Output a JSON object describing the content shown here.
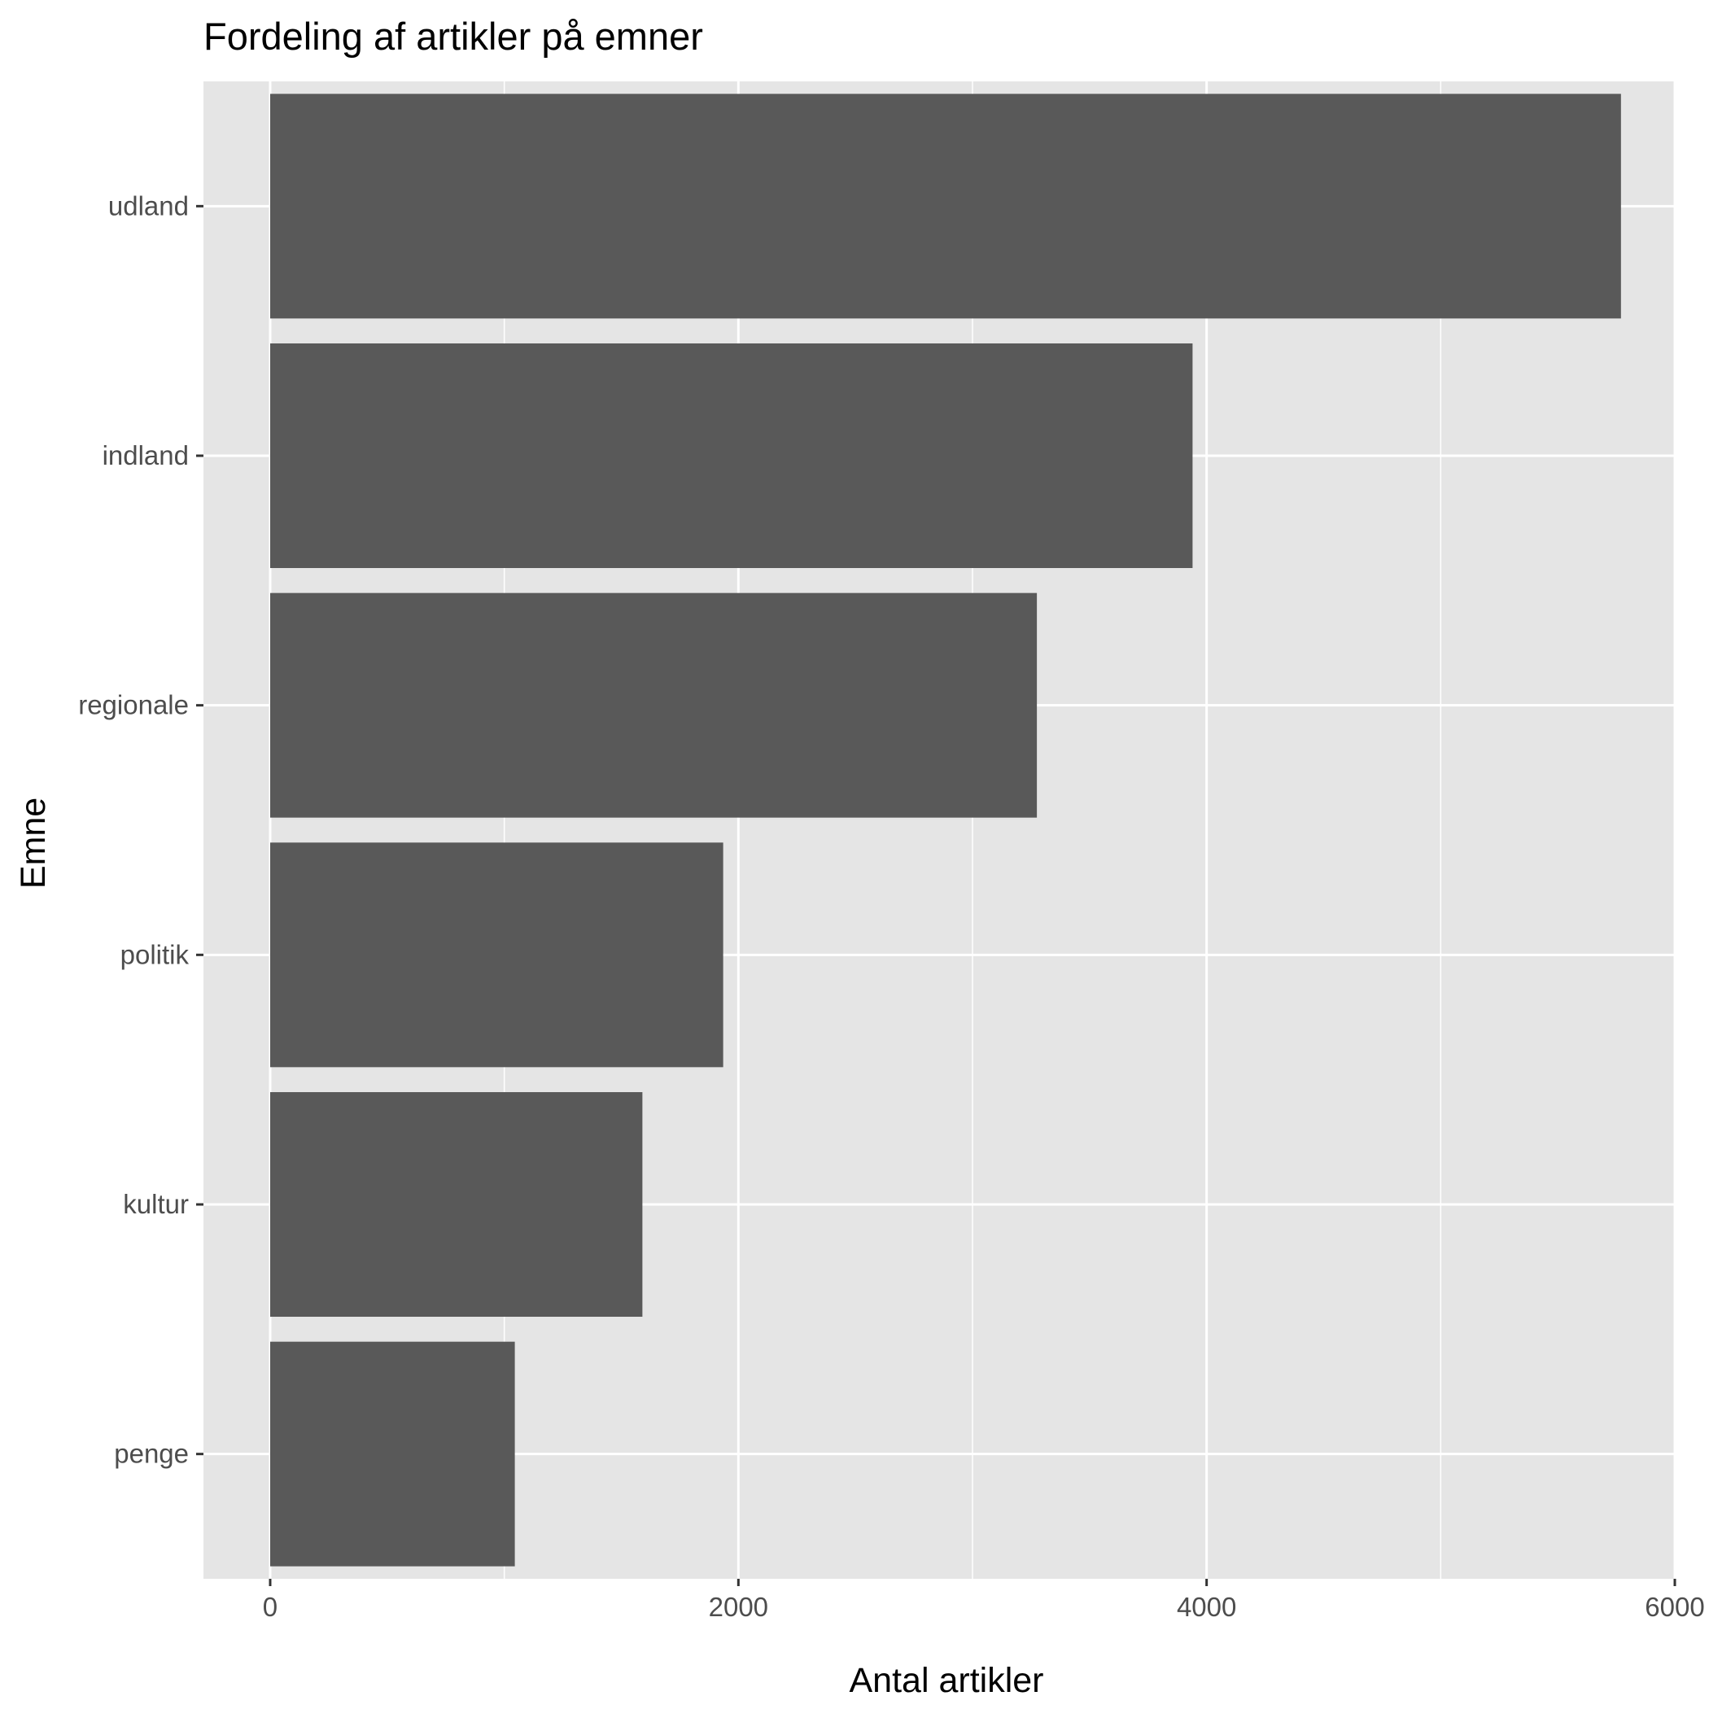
{
  "chart_data": {
    "type": "bar",
    "orientation": "horizontal",
    "title": "Fordeling af artikler på emner",
    "xlabel": "Antal artikler",
    "ylabel": "Emne",
    "categories": [
      "udland",
      "indland",
      "regionale",
      "politik",
      "kultur",
      "penge"
    ],
    "values": [
      5770,
      3940,
      3275,
      1935,
      1590,
      1045
    ],
    "xlim": [
      -285,
      6000
    ],
    "xticks": [
      0,
      2000,
      4000,
      6000
    ],
    "xtick_labels": [
      "0",
      "2000",
      "4000",
      "6000"
    ],
    "grid": true,
    "legend": "none",
    "colors": {
      "panel_background": "#e5e5e5",
      "grid": "#ffffff",
      "bar": "#595959",
      "tick_text": "#4d4d4d",
      "title_text": "#000000"
    }
  }
}
